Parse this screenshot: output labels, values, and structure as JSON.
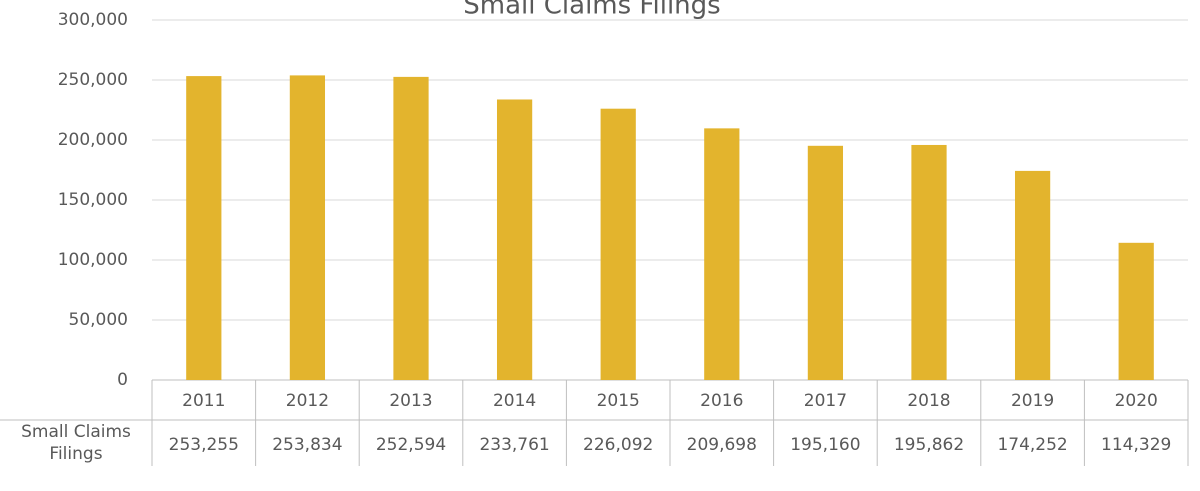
{
  "chart_data": {
    "type": "bar",
    "title": "Small Claims Filings",
    "categories": [
      "2011",
      "2012",
      "2013",
      "2014",
      "2015",
      "2016",
      "2017",
      "2018",
      "2019",
      "2020"
    ],
    "series": [
      {
        "name": "Small Claims Filings",
        "color": "#e3b42d",
        "values": [
          253255,
          253834,
          252594,
          233761,
          226092,
          209698,
          195160,
          195862,
          174252,
          114329
        ],
        "value_labels": [
          "253,255",
          "253,834",
          "252,594",
          "233,761",
          "226,092",
          "209,698",
          "195,160",
          "195,862",
          "174,252",
          "114,329"
        ]
      }
    ],
    "ylim": [
      0,
      300000
    ],
    "yticks": [
      0,
      {
        "value": 50000,
        "label": "50,000"
      },
      {
        "value": 100000,
        "label": "100,000"
      },
      {
        "value": 150000,
        "label": "150,000"
      },
      {
        "value": 200000,
        "label": "200,000"
      },
      {
        "value": 250000,
        "label": "250,000"
      },
      {
        "value": 300000,
        "label": "300,000"
      }
    ],
    "grid": true
  }
}
